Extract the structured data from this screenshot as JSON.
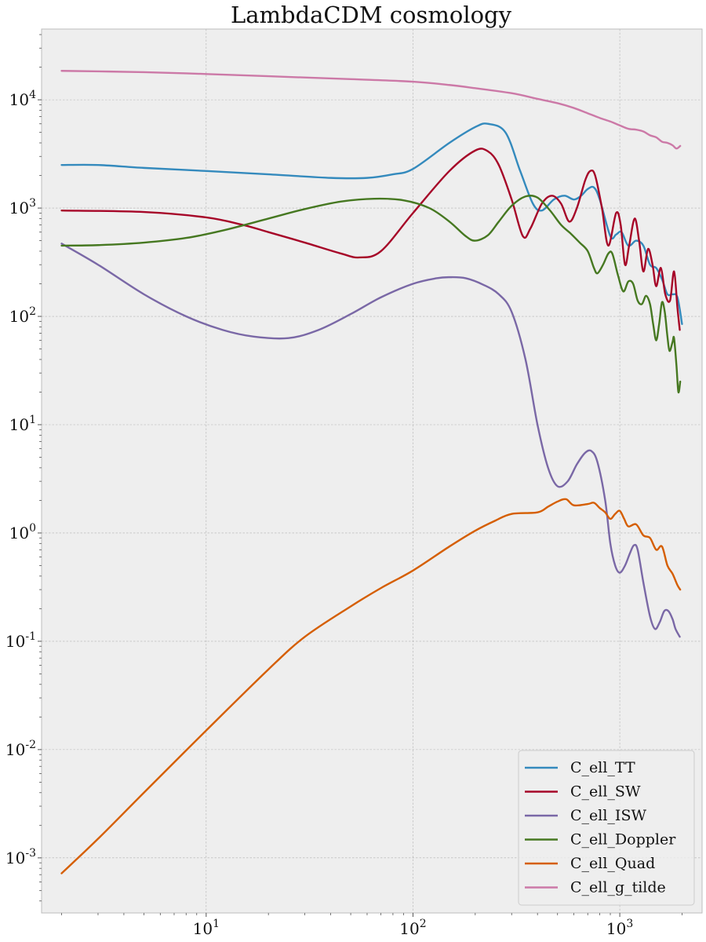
{
  "chart_data": {
    "type": "line",
    "title": "LambdaCDM cosmology",
    "xlabel": "",
    "ylabel": "",
    "xscale": "log",
    "yscale": "log",
    "xlim": [
      1.6,
      2500
    ],
    "ylim": [
      0.00031,
      45000
    ],
    "grid": true,
    "legend_position": "lower-right",
    "x_ticks": [
      {
        "base": "10",
        "exp": "1",
        "value": 10
      },
      {
        "base": "10",
        "exp": "2",
        "value": 100
      },
      {
        "base": "10",
        "exp": "3",
        "value": 1000
      }
    ],
    "y_ticks": [
      {
        "base": "10",
        "exp": "-3",
        "value": 0.001
      },
      {
        "base": "10",
        "exp": "-2",
        "value": 0.01
      },
      {
        "base": "10",
        "exp": "-1",
        "value": 0.1
      },
      {
        "base": "10",
        "exp": "0",
        "value": 1
      },
      {
        "base": "10",
        "exp": "1",
        "value": 10
      },
      {
        "base": "10",
        "exp": "2",
        "value": 100
      },
      {
        "base": "10",
        "exp": "3",
        "value": 1000
      },
      {
        "base": "10",
        "exp": "4",
        "value": 10000
      }
    ],
    "series": [
      {
        "name": "C_ell_TT",
        "color": "#348ABD",
        "points": [
          [
            2,
            2500
          ],
          [
            3,
            2500
          ],
          [
            5,
            2350
          ],
          [
            10,
            2200
          ],
          [
            20,
            2050
          ],
          [
            40,
            1900
          ],
          [
            60,
            1900
          ],
          [
            80,
            2050
          ],
          [
            100,
            2300
          ],
          [
            150,
            4000
          ],
          [
            200,
            5600
          ],
          [
            230,
            6000
          ],
          [
            280,
            5000
          ],
          [
            330,
            2200
          ],
          [
            380,
            1100
          ],
          [
            420,
            950
          ],
          [
            480,
            1200
          ],
          [
            540,
            1300
          ],
          [
            600,
            1200
          ],
          [
            650,
            1300
          ],
          [
            700,
            1500
          ],
          [
            750,
            1550
          ],
          [
            800,
            1200
          ],
          [
            900,
            550
          ],
          [
            960,
            570
          ],
          [
            1020,
            600
          ],
          [
            1100,
            450
          ],
          [
            1200,
            500
          ],
          [
            1300,
            450
          ],
          [
            1400,
            300
          ],
          [
            1500,
            280
          ],
          [
            1600,
            220
          ],
          [
            1700,
            160
          ],
          [
            1800,
            160
          ],
          [
            1900,
            150
          ],
          [
            2000,
            85
          ]
        ]
      },
      {
        "name": "C_ell_SW",
        "color": "#A60628",
        "points": [
          [
            2,
            950
          ],
          [
            5,
            920
          ],
          [
            10,
            820
          ],
          [
            15,
            700
          ],
          [
            20,
            600
          ],
          [
            30,
            480
          ],
          [
            45,
            380
          ],
          [
            55,
            350
          ],
          [
            70,
            400
          ],
          [
            100,
            900
          ],
          [
            150,
            2200
          ],
          [
            200,
            3400
          ],
          [
            230,
            3350
          ],
          [
            260,
            2500
          ],
          [
            300,
            1200
          ],
          [
            340,
            550
          ],
          [
            370,
            650
          ],
          [
            420,
            1100
          ],
          [
            470,
            1300
          ],
          [
            520,
            1100
          ],
          [
            570,
            750
          ],
          [
            620,
            1000
          ],
          [
            680,
            1800
          ],
          [
            720,
            2200
          ],
          [
            760,
            2000
          ],
          [
            820,
            1000
          ],
          [
            880,
            450
          ],
          [
            960,
            900
          ],
          [
            1010,
            700
          ],
          [
            1060,
            300
          ],
          [
            1110,
            450
          ],
          [
            1180,
            800
          ],
          [
            1240,
            500
          ],
          [
            1300,
            260
          ],
          [
            1370,
            420
          ],
          [
            1440,
            300
          ],
          [
            1500,
            190
          ],
          [
            1580,
            280
          ],
          [
            1660,
            160
          ],
          [
            1750,
            140
          ],
          [
            1830,
            260
          ],
          [
            1900,
            120
          ],
          [
            1950,
            75
          ]
        ]
      },
      {
        "name": "C_ell_ISW",
        "color": "#7A68A6",
        "points": [
          [
            2,
            470
          ],
          [
            3,
            300
          ],
          [
            5,
            160
          ],
          [
            8,
            100
          ],
          [
            12,
            75
          ],
          [
            17,
            65
          ],
          [
            25,
            63
          ],
          [
            35,
            75
          ],
          [
            50,
            105
          ],
          [
            70,
            150
          ],
          [
            100,
            200
          ],
          [
            130,
            225
          ],
          [
            150,
            230
          ],
          [
            180,
            225
          ],
          [
            220,
            195
          ],
          [
            260,
            160
          ],
          [
            300,
            110
          ],
          [
            350,
            40
          ],
          [
            400,
            10
          ],
          [
            450,
            4
          ],
          [
            500,
            2.7
          ],
          [
            560,
            3
          ],
          [
            620,
            4.3
          ],
          [
            680,
            5.5
          ],
          [
            730,
            5.7
          ],
          [
            780,
            4.5
          ],
          [
            850,
            2
          ],
          [
            900,
            0.8
          ],
          [
            950,
            0.5
          ],
          [
            1000,
            0.43
          ],
          [
            1060,
            0.5
          ],
          [
            1120,
            0.65
          ],
          [
            1170,
            0.77
          ],
          [
            1220,
            0.7
          ],
          [
            1300,
            0.35
          ],
          [
            1400,
            0.17
          ],
          [
            1480,
            0.13
          ],
          [
            1560,
            0.15
          ],
          [
            1640,
            0.19
          ],
          [
            1720,
            0.19
          ],
          [
            1800,
            0.16
          ],
          [
            1860,
            0.13
          ],
          [
            1950,
            0.11
          ]
        ]
      },
      {
        "name": "C_ell_Doppler",
        "color": "#467821",
        "points": [
          [
            2,
            450
          ],
          [
            3,
            455
          ],
          [
            5,
            480
          ],
          [
            8,
            530
          ],
          [
            12,
            620
          ],
          [
            20,
            800
          ],
          [
            30,
            980
          ],
          [
            45,
            1150
          ],
          [
            65,
            1220
          ],
          [
            90,
            1180
          ],
          [
            120,
            1000
          ],
          [
            150,
            750
          ],
          [
            180,
            550
          ],
          [
            200,
            500
          ],
          [
            230,
            560
          ],
          [
            260,
            750
          ],
          [
            300,
            1050
          ],
          [
            350,
            1280
          ],
          [
            400,
            1250
          ],
          [
            460,
            950
          ],
          [
            520,
            700
          ],
          [
            580,
            580
          ],
          [
            640,
            480
          ],
          [
            700,
            400
          ],
          [
            750,
            280
          ],
          [
            780,
            250
          ],
          [
            830,
            300
          ],
          [
            880,
            380
          ],
          [
            920,
            380
          ],
          [
            980,
            240
          ],
          [
            1040,
            170
          ],
          [
            1100,
            210
          ],
          [
            1160,
            200
          ],
          [
            1220,
            140
          ],
          [
            1280,
            130
          ],
          [
            1340,
            155
          ],
          [
            1400,
            130
          ],
          [
            1450,
            85
          ],
          [
            1500,
            60
          ],
          [
            1550,
            85
          ],
          [
            1600,
            135
          ],
          [
            1650,
            110
          ],
          [
            1700,
            65
          ],
          [
            1740,
            48
          ],
          [
            1800,
            58
          ],
          [
            1830,
            63
          ],
          [
            1880,
            35
          ],
          [
            1920,
            20
          ],
          [
            1960,
            25
          ]
        ]
      },
      {
        "name": "C_ell_Quad",
        "color": "#D55E00",
        "points": [
          [
            2,
            0.00072
          ],
          [
            3,
            0.0015
          ],
          [
            5,
            0.004
          ],
          [
            10,
            0.015
          ],
          [
            20,
            0.055
          ],
          [
            30,
            0.11
          ],
          [
            50,
            0.21
          ],
          [
            70,
            0.31
          ],
          [
            100,
            0.45
          ],
          [
            150,
            0.75
          ],
          [
            200,
            1.05
          ],
          [
            250,
            1.3
          ],
          [
            300,
            1.5
          ],
          [
            400,
            1.55
          ],
          [
            450,
            1.75
          ],
          [
            500,
            1.95
          ],
          [
            550,
            2.05
          ],
          [
            600,
            1.8
          ],
          [
            700,
            1.85
          ],
          [
            750,
            1.9
          ],
          [
            800,
            1.7
          ],
          [
            850,
            1.55
          ],
          [
            900,
            1.35
          ],
          [
            950,
            1.5
          ],
          [
            1000,
            1.6
          ],
          [
            1050,
            1.35
          ],
          [
            1100,
            1.15
          ],
          [
            1200,
            1.2
          ],
          [
            1300,
            0.95
          ],
          [
            1400,
            0.9
          ],
          [
            1500,
            0.7
          ],
          [
            1600,
            0.75
          ],
          [
            1700,
            0.5
          ],
          [
            1800,
            0.42
          ],
          [
            1900,
            0.33
          ],
          [
            1960,
            0.3
          ]
        ]
      },
      {
        "name": "C_ell_g_tilde",
        "color": "#CC79A7",
        "points": [
          [
            2,
            18500
          ],
          [
            5,
            18000
          ],
          [
            10,
            17300
          ],
          [
            20,
            16500
          ],
          [
            50,
            15500
          ],
          [
            100,
            14700
          ],
          [
            150,
            13700
          ],
          [
            200,
            12800
          ],
          [
            300,
            11500
          ],
          [
            400,
            10200
          ],
          [
            500,
            9300
          ],
          [
            600,
            8400
          ],
          [
            700,
            7500
          ],
          [
            800,
            6800
          ],
          [
            900,
            6300
          ],
          [
            1000,
            5800
          ],
          [
            1100,
            5400
          ],
          [
            1200,
            5300
          ],
          [
            1300,
            5100
          ],
          [
            1400,
            4700
          ],
          [
            1500,
            4500
          ],
          [
            1600,
            4100
          ],
          [
            1700,
            4000
          ],
          [
            1800,
            3800
          ],
          [
            1880,
            3550
          ],
          [
            1960,
            3750
          ]
        ]
      }
    ]
  }
}
